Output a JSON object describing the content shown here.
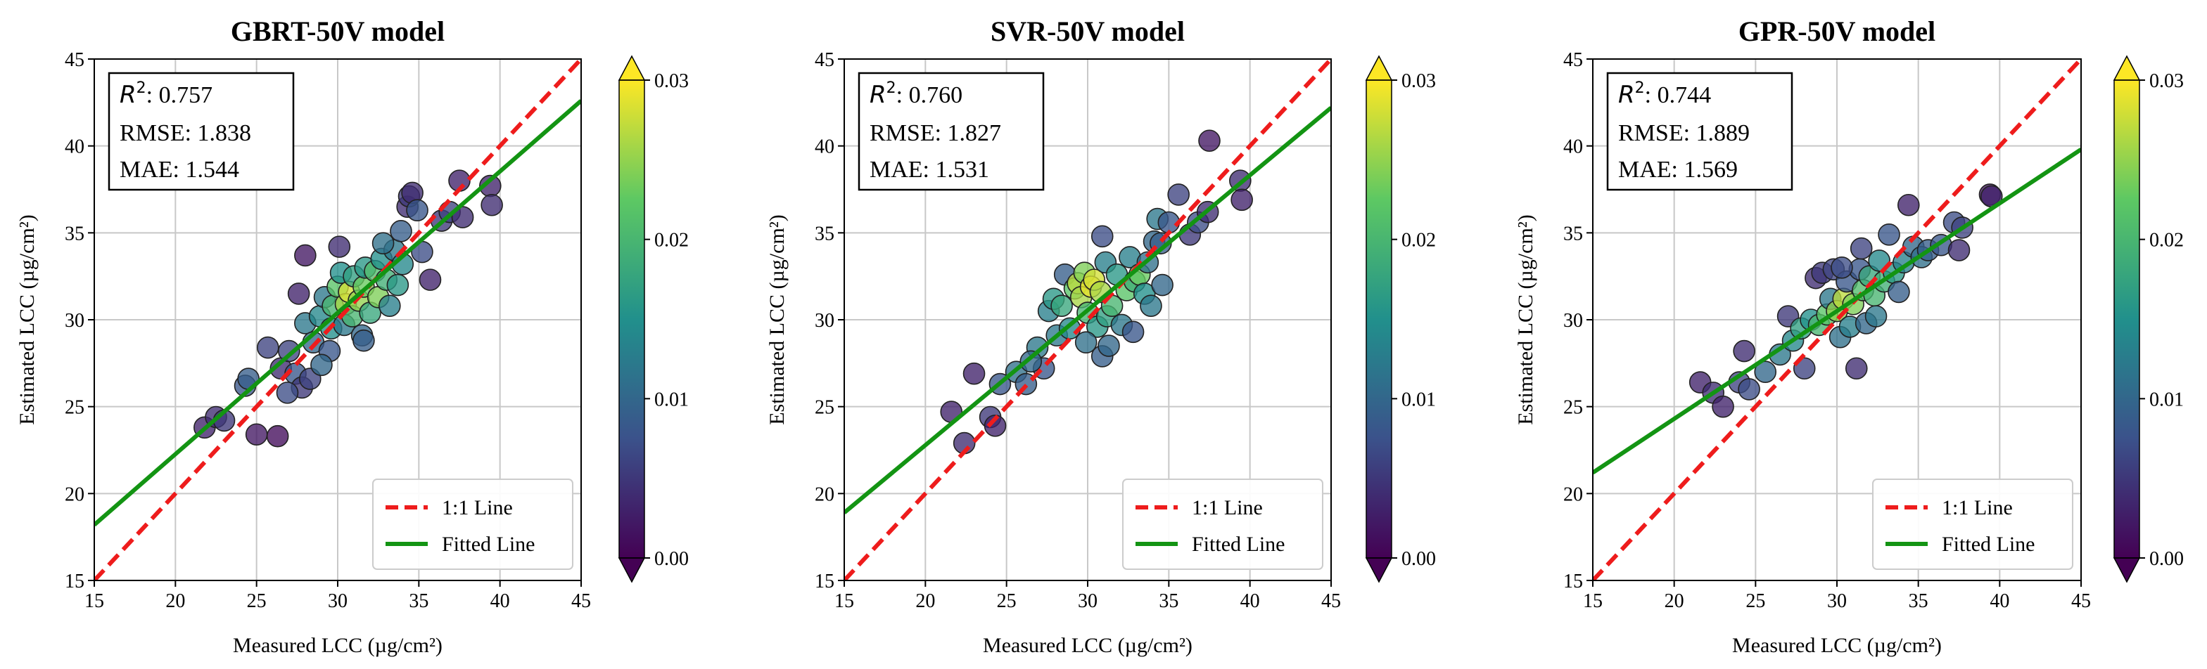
{
  "colorbar": {
    "ticks": [
      "0.00",
      "0.01",
      "0.02",
      "0.03"
    ],
    "stops": [
      "#440154",
      "#3b528b",
      "#21908c",
      "#5dc863",
      "#fde725"
    ]
  },
  "colors": {
    "one_to_one": "#ee1c1c",
    "fitted": "#139413",
    "grid": "#c8c8c8"
  },
  "chart_data": [
    {
      "type": "scatter",
      "title": "GBRT-50V model",
      "xlabel": "Measured LCC (µg/cm²)",
      "ylabel": "Estimated LCC (µg/cm²)",
      "xlim": [
        15,
        45
      ],
      "ylim": [
        15,
        45
      ],
      "xticks": [
        15,
        20,
        25,
        30,
        35,
        40,
        45
      ],
      "yticks": [
        15,
        20,
        25,
        30,
        35,
        40,
        45
      ],
      "grid": true,
      "stats": {
        "r2_label": "R",
        "r2_sup": "2",
        "r2_text": ": 0.757",
        "rmse": "RMSE: 1.838",
        "mae": "MAE: 1.544"
      },
      "legend": {
        "position": "lower-right",
        "line1": "1:1 Line",
        "line2": "Fitted Line"
      },
      "fitted_line": {
        "x": [
          15,
          45
        ],
        "y": [
          18.2,
          42.6
        ]
      },
      "points": [
        [
          21.8,
          23.8,
          0.003
        ],
        [
          22.5,
          24.4,
          0.004
        ],
        [
          23.0,
          24.2,
          0.005
        ],
        [
          24.3,
          26.2,
          0.008
        ],
        [
          24.5,
          26.6,
          0.009
        ],
        [
          25.0,
          23.4,
          0.002
        ],
        [
          25.7,
          28.4,
          0.006
        ],
        [
          26.3,
          23.3,
          0.001
        ],
        [
          26.5,
          27.2,
          0.004
        ],
        [
          27.0,
          28.2,
          0.006
        ],
        [
          27.4,
          26.9,
          0.008
        ],
        [
          27.6,
          31.5,
          0.003
        ],
        [
          27.8,
          26.1,
          0.005
        ],
        [
          28.0,
          29.8,
          0.012
        ],
        [
          28.0,
          33.7,
          0.002
        ],
        [
          28.3,
          26.6,
          0.006
        ],
        [
          28.5,
          28.7,
          0.01
        ],
        [
          28.9,
          30.2,
          0.014
        ],
        [
          29.2,
          31.3,
          0.012
        ],
        [
          29.5,
          28.2,
          0.008
        ],
        [
          29.6,
          29.5,
          0.015
        ],
        [
          29.7,
          30.8,
          0.02
        ],
        [
          30.0,
          31.9,
          0.022
        ],
        [
          30.2,
          32.7,
          0.015
        ],
        [
          30.4,
          29.7,
          0.012
        ],
        [
          30.5,
          30.9,
          0.026
        ],
        [
          30.7,
          31.6,
          0.028
        ],
        [
          30.9,
          30.2,
          0.02
        ],
        [
          31.0,
          32.5,
          0.017
        ],
        [
          31.3,
          31.1,
          0.025
        ],
        [
          31.5,
          29.1,
          0.01
        ],
        [
          31.6,
          31.9,
          0.023
        ],
        [
          31.7,
          33.0,
          0.016
        ],
        [
          32.0,
          30.4,
          0.018
        ],
        [
          32.3,
          32.8,
          0.021
        ],
        [
          32.5,
          31.3,
          0.024
        ],
        [
          32.7,
          33.5,
          0.015
        ],
        [
          33.0,
          32.3,
          0.019
        ],
        [
          33.2,
          30.8,
          0.013
        ],
        [
          33.5,
          34.0,
          0.012
        ],
        [
          33.7,
          32.0,
          0.016
        ],
        [
          34.0,
          33.2,
          0.014
        ],
        [
          34.3,
          36.5,
          0.004
        ],
        [
          34.4,
          37.1,
          0.005
        ],
        [
          34.6,
          37.3,
          0.004
        ],
        [
          34.9,
          36.3,
          0.008
        ],
        [
          35.2,
          33.9,
          0.007
        ],
        [
          35.7,
          32.3,
          0.003
        ],
        [
          36.4,
          35.7,
          0.005
        ],
        [
          36.9,
          36.2,
          0.006
        ],
        [
          37.5,
          38.0,
          0.003
        ],
        [
          37.7,
          35.9,
          0.004
        ],
        [
          39.4,
          37.7,
          0.003
        ],
        [
          39.5,
          36.6,
          0.004
        ],
        [
          30.1,
          34.2,
          0.004
        ],
        [
          31.6,
          28.8,
          0.009
        ],
        [
          32.8,
          34.4,
          0.011
        ],
        [
          26.9,
          25.8,
          0.007
        ],
        [
          29.0,
          27.4,
          0.01
        ],
        [
          33.9,
          35.1,
          0.009
        ]
      ]
    },
    {
      "type": "scatter",
      "title": "SVR-50V model",
      "xlabel": "Measured LCC (µg/cm²)",
      "ylabel": "Estimated LCC (µg/cm²)",
      "xlim": [
        15,
        45
      ],
      "ylim": [
        15,
        45
      ],
      "xticks": [
        15,
        20,
        25,
        30,
        35,
        40,
        45
      ],
      "yticks": [
        15,
        20,
        25,
        30,
        35,
        40,
        45
      ],
      "grid": true,
      "stats": {
        "r2_label": "R",
        "r2_sup": "2",
        "r2_text": ": 0.760",
        "rmse": "RMSE: 1.827",
        "mae": "MAE: 1.531"
      },
      "legend": {
        "position": "lower-right",
        "line1": "1:1 Line",
        "line2": "Fitted Line"
      },
      "fitted_line": {
        "x": [
          15,
          45
        ],
        "y": [
          18.9,
          42.2
        ]
      },
      "points": [
        [
          21.6,
          24.7,
          0.003
        ],
        [
          22.4,
          22.9,
          0.004
        ],
        [
          23.0,
          26.9,
          0.003
        ],
        [
          24.0,
          24.4,
          0.005
        ],
        [
          24.3,
          23.9,
          0.003
        ],
        [
          24.6,
          26.3,
          0.008
        ],
        [
          25.6,
          27.0,
          0.011
        ],
        [
          26.2,
          26.3,
          0.009
        ],
        [
          26.9,
          28.4,
          0.012
        ],
        [
          27.3,
          27.2,
          0.008
        ],
        [
          27.6,
          30.5,
          0.013
        ],
        [
          27.9,
          31.2,
          0.016
        ],
        [
          28.1,
          29.1,
          0.012
        ],
        [
          28.4,
          30.8,
          0.018
        ],
        [
          28.6,
          32.6,
          0.009
        ],
        [
          28.9,
          29.5,
          0.014
        ],
        [
          29.2,
          31.8,
          0.022
        ],
        [
          29.4,
          32.1,
          0.027
        ],
        [
          29.6,
          31.3,
          0.026
        ],
        [
          29.8,
          32.7,
          0.024
        ],
        [
          30.0,
          30.4,
          0.02
        ],
        [
          30.2,
          31.9,
          0.029
        ],
        [
          30.4,
          32.3,
          0.028
        ],
        [
          30.6,
          29.6,
          0.016
        ],
        [
          30.8,
          31.6,
          0.026
        ],
        [
          30.9,
          34.8,
          0.007
        ],
        [
          31.1,
          33.3,
          0.013
        ],
        [
          31.2,
          30.2,
          0.017
        ],
        [
          31.5,
          30.8,
          0.02
        ],
        [
          31.8,
          32.6,
          0.016
        ],
        [
          32.1,
          29.7,
          0.012
        ],
        [
          32.4,
          31.7,
          0.022
        ],
        [
          32.6,
          33.6,
          0.013
        ],
        [
          32.9,
          32.2,
          0.019
        ],
        [
          33.2,
          32.6,
          0.023
        ],
        [
          33.5,
          31.5,
          0.015
        ],
        [
          33.7,
          33.3,
          0.011
        ],
        [
          34.1,
          34.5,
          0.01
        ],
        [
          34.3,
          35.8,
          0.012
        ],
        [
          34.6,
          32.0,
          0.01
        ],
        [
          35.0,
          35.6,
          0.008
        ],
        [
          35.6,
          37.2,
          0.006
        ],
        [
          36.3,
          34.9,
          0.005
        ],
        [
          36.8,
          35.6,
          0.007
        ],
        [
          37.4,
          36.2,
          0.004
        ],
        [
          37.5,
          40.3,
          0.002
        ],
        [
          39.4,
          38.0,
          0.004
        ],
        [
          39.5,
          36.9,
          0.003
        ],
        [
          30.9,
          27.9,
          0.009
        ],
        [
          31.3,
          28.5,
          0.01
        ],
        [
          29.9,
          28.7,
          0.011
        ],
        [
          32.8,
          29.3,
          0.008
        ],
        [
          33.9,
          30.8,
          0.012
        ],
        [
          34.5,
          34.4,
          0.009
        ],
        [
          26.5,
          27.6,
          0.01
        ]
      ]
    },
    {
      "type": "scatter",
      "title": "GPR-50V model",
      "xlabel": "Measured LCC (µg/cm²)",
      "ylabel": "Estimated LCC (µg/cm²)",
      "xlim": [
        15,
        45
      ],
      "ylim": [
        15,
        45
      ],
      "xticks": [
        15,
        20,
        25,
        30,
        35,
        40,
        45
      ],
      "yticks": [
        15,
        20,
        25,
        30,
        35,
        40,
        45
      ],
      "grid": true,
      "stats": {
        "r2_label": "R",
        "r2_sup": "2",
        "r2_text": ": 0.744",
        "rmse": "RMSE: 1.889",
        "mae": "MAE: 1.569"
      },
      "legend": {
        "position": "lower-right",
        "line1": "1:1 Line",
        "line2": "Fitted Line"
      },
      "fitted_line": {
        "x": [
          15,
          45
        ],
        "y": [
          21.2,
          39.8
        ]
      },
      "points": [
        [
          21.6,
          26.4,
          0.003
        ],
        [
          22.4,
          25.8,
          0.004
        ],
        [
          23.0,
          25.0,
          0.003
        ],
        [
          24.0,
          26.4,
          0.006
        ],
        [
          24.3,
          28.2,
          0.004
        ],
        [
          24.6,
          26.0,
          0.007
        ],
        [
          25.6,
          27.0,
          0.01
        ],
        [
          26.5,
          28.0,
          0.012
        ],
        [
          27.0,
          30.2,
          0.005
        ],
        [
          27.3,
          28.8,
          0.014
        ],
        [
          27.8,
          29.5,
          0.017
        ],
        [
          28.0,
          27.2,
          0.006
        ],
        [
          28.4,
          30.0,
          0.015
        ],
        [
          28.7,
          32.4,
          0.004
        ],
        [
          28.9,
          29.7,
          0.02
        ],
        [
          29.1,
          32.7,
          0.005
        ],
        [
          29.4,
          30.3,
          0.022
        ],
        [
          29.6,
          31.2,
          0.012
        ],
        [
          29.8,
          32.9,
          0.006
        ],
        [
          30.0,
          30.5,
          0.025
        ],
        [
          30.2,
          29.0,
          0.011
        ],
        [
          30.4,
          31.2,
          0.027
        ],
        [
          30.6,
          32.2,
          0.008
        ],
        [
          30.8,
          29.6,
          0.013
        ],
        [
          31.0,
          30.9,
          0.024
        ],
        [
          31.2,
          27.2,
          0.004
        ],
        [
          31.4,
          32.9,
          0.008
        ],
        [
          31.6,
          31.7,
          0.021
        ],
        [
          31.8,
          29.8,
          0.01
        ],
        [
          32.0,
          32.5,
          0.018
        ],
        [
          32.3,
          31.4,
          0.02
        ],
        [
          32.6,
          33.4,
          0.014
        ],
        [
          32.9,
          32.2,
          0.019
        ],
        [
          33.2,
          34.9,
          0.008
        ],
        [
          33.5,
          32.7,
          0.016
        ],
        [
          33.8,
          31.6,
          0.009
        ],
        [
          34.1,
          33.3,
          0.013
        ],
        [
          34.4,
          36.6,
          0.003
        ],
        [
          34.7,
          34.2,
          0.01
        ],
        [
          35.2,
          33.6,
          0.011
        ],
        [
          35.6,
          34.0,
          0.009
        ],
        [
          36.4,
          34.3,
          0.008
        ],
        [
          37.2,
          35.6,
          0.007
        ],
        [
          37.5,
          34.0,
          0.004
        ],
        [
          37.7,
          35.3,
          0.006
        ],
        [
          39.4,
          37.2,
          0.002
        ],
        [
          39.5,
          37.1,
          0.003
        ],
        [
          31.5,
          34.1,
          0.006
        ],
        [
          30.3,
          33.0,
          0.007
        ],
        [
          32.4,
          30.2,
          0.012
        ]
      ]
    }
  ]
}
